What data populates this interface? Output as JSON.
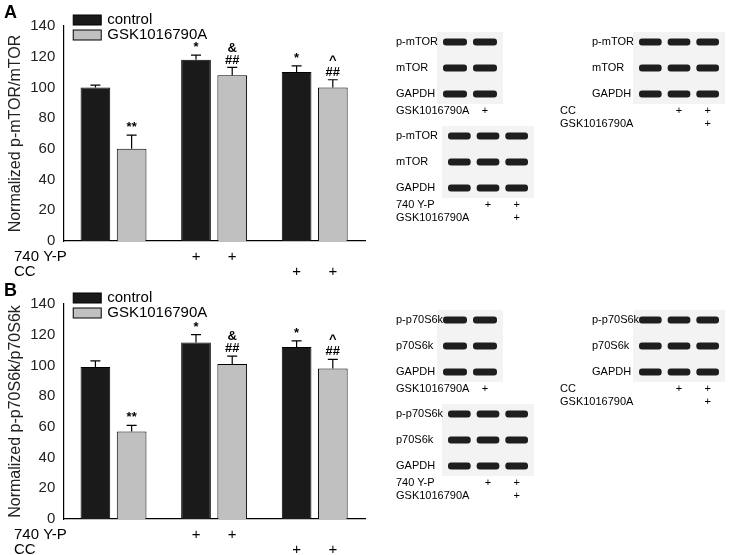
{
  "chart_data": [
    {
      "type": "bar",
      "panel_label": "A",
      "y_label": "Normalized p-mTOR/mTOR",
      "categories": [
        null,
        null,
        null
      ],
      "series": [
        {
          "name": "control",
          "color": "#1a1a1a",
          "values": [
            100,
            118,
            110
          ],
          "errors": [
            1.5,
            3,
            4
          ],
          "annotations": [
            null,
            [
              "*"
            ],
            [
              "*"
            ]
          ]
        },
        {
          "name": "GSK1016790A",
          "color": "#c0c0c0",
          "values": [
            60,
            108,
            100
          ],
          "errors": [
            9,
            5,
            5
          ],
          "annotations": [
            [
              "**"
            ],
            [
              "&",
              "##"
            ],
            [
              "^",
              "##"
            ]
          ]
        }
      ],
      "ylim": [
        0,
        140
      ],
      "yticks": [
        0,
        20,
        40,
        60,
        80,
        100,
        120,
        140
      ],
      "grid": false,
      "legend": "upper left",
      "tick_labels": "y",
      "treatment_rows": [
        {
          "label": "740 Y-P",
          "marks": [
            null,
            null,
            "+",
            "+",
            null,
            null
          ]
        },
        {
          "label": "CC",
          "marks": [
            null,
            null,
            null,
            null,
            "+",
            "+"
          ]
        }
      ],
      "blots": [
        {
          "rows": [
            "p-mTOR",
            "mTOR",
            "GAPDH"
          ],
          "treatments": [
            {
              "label": "GSK1016790A",
              "marks": [
                null,
                "+"
              ]
            }
          ]
        },
        {
          "rows": [
            "p-mTOR",
            "mTOR",
            "GAPDH"
          ],
          "treatments": [
            {
              "label": "CC",
              "marks": [
                null,
                "+",
                "+"
              ]
            },
            {
              "label": "GSK1016790A",
              "marks": [
                null,
                null,
                "+"
              ]
            }
          ]
        },
        {
          "rows": [
            "p-mTOR",
            "mTOR",
            "GAPDH"
          ],
          "treatments": [
            {
              "label": "740 Y-P",
              "marks": [
                null,
                "+",
                "+"
              ]
            },
            {
              "label": "GSK1016790A",
              "marks": [
                null,
                null,
                "+"
              ]
            }
          ]
        }
      ]
    },
    {
      "type": "bar",
      "panel_label": "B",
      "y_label": "Normalized p-p70S6k/p70S6k",
      "categories": [
        null,
        null,
        null
      ],
      "series": [
        {
          "name": "control",
          "color": "#1a1a1a",
          "values": [
            99,
            115,
            112
          ],
          "errors": [
            4,
            5,
            4
          ],
          "annotations": [
            null,
            [
              "*"
            ],
            [
              "*"
            ]
          ]
        },
        {
          "name": "GSK1016790A",
          "color": "#c0c0c0",
          "values": [
            57,
            101,
            98
          ],
          "errors": [
            4,
            5,
            6
          ],
          "annotations": [
            [
              "**"
            ],
            [
              "&",
              "##"
            ],
            [
              "^",
              "##"
            ]
          ]
        }
      ],
      "ylim": [
        0,
        140
      ],
      "yticks": [
        0,
        20,
        40,
        60,
        80,
        100,
        120,
        140
      ],
      "grid": false,
      "legend": "upper left",
      "tick_labels": "y",
      "treatment_rows": [
        {
          "label": "740 Y-P",
          "marks": [
            null,
            null,
            "+",
            "+",
            null,
            null
          ]
        },
        {
          "label": "CC",
          "marks": [
            null,
            null,
            null,
            null,
            "+",
            "+"
          ]
        }
      ],
      "blots": [
        {
          "rows": [
            "p-p70S6k",
            "p70S6k",
            "GAPDH"
          ],
          "treatments": [
            {
              "label": "GSK1016790A",
              "marks": [
                null,
                "+"
              ]
            }
          ]
        },
        {
          "rows": [
            "p-p70S6k",
            "p70S6k",
            "GAPDH"
          ],
          "treatments": [
            {
              "label": "CC",
              "marks": [
                null,
                "+",
                "+"
              ]
            },
            {
              "label": "GSK1016790A",
              "marks": [
                null,
                null,
                "+"
              ]
            }
          ]
        },
        {
          "rows": [
            "p-p70S6k",
            "p70S6k",
            "GAPDH"
          ],
          "treatments": [
            {
              "label": "740 Y-P",
              "marks": [
                null,
                "+",
                "+"
              ]
            },
            {
              "label": "GSK1016790A",
              "marks": [
                null,
                null,
                "+"
              ]
            }
          ]
        }
      ]
    }
  ]
}
